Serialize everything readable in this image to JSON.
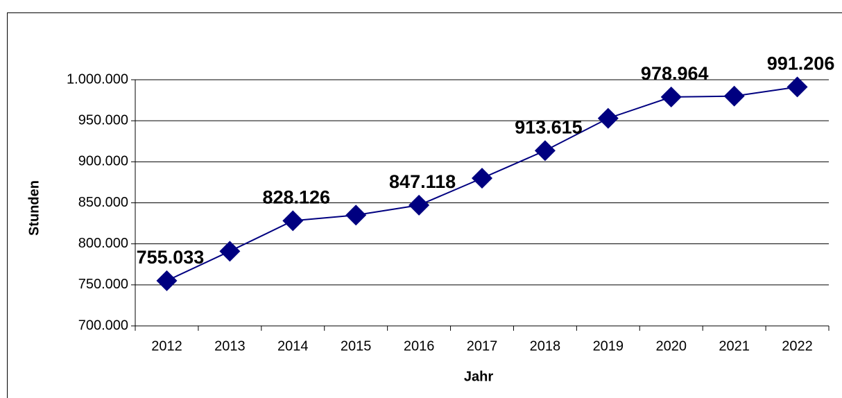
{
  "chart_data": {
    "type": "line",
    "x_label": "Jahr",
    "y_label": "Stunden",
    "categories": [
      "2012",
      "2013",
      "2014",
      "2015",
      "2016",
      "2017",
      "2018",
      "2019",
      "2020",
      "2021",
      "2022"
    ],
    "series": [
      {
        "name": "Stunden",
        "color": "#000080",
        "values": [
          755033,
          791000,
          828126,
          835000,
          847118,
          880000,
          913615,
          953000,
          978964,
          980000,
          991206
        ],
        "value_labels": [
          "755.033",
          null,
          "828.126",
          null,
          "847.118",
          null,
          "913.615",
          null,
          "978.964",
          null,
          "991.206"
        ]
      }
    ],
    "ylim": [
      700000,
      1000000
    ],
    "yticks": [
      {
        "value": 700000,
        "label": "700.000"
      },
      {
        "value": 750000,
        "label": "750.000"
      },
      {
        "value": 800000,
        "label": "800.000"
      },
      {
        "value": 850000,
        "label": "850.000"
      },
      {
        "value": 900000,
        "label": "900.000"
      },
      {
        "value": 950000,
        "label": "950.000"
      },
      {
        "value": 1000000,
        "label": "1.000.000"
      }
    ],
    "grid": true
  }
}
